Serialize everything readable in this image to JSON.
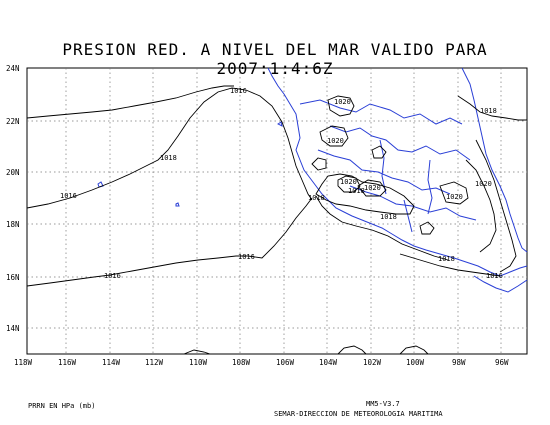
{
  "title": "PRESION RED. A NIVEL DEL MAR VALIDO PARA 2007:1:4:6Z",
  "units_note": "PRRN EN HPa (mb)",
  "model_version": "MM5-V3.7",
  "credit": "SEMAR-DIRECCION DE METEOROLOGIA MARITIMA",
  "colors": {
    "coastline": "#2a3fd6",
    "contour": "#000000",
    "grid": "#777777"
  },
  "latitude_ticks": [
    "24N",
    "22N",
    "20N",
    "18N",
    "16N",
    "14N"
  ],
  "longitude_ticks": [
    "118W",
    "116W",
    "114W",
    "112W",
    "110W",
    "108W",
    "106W",
    "104W",
    "102W",
    "100W",
    "98W",
    "96W"
  ],
  "contour_labels": [
    "1016",
    "1018",
    "1016",
    "1018",
    "1016",
    "1016",
    "1018",
    "1020",
    "1020",
    "1020",
    "1018",
    "1020",
    "1020",
    "1018",
    "1018",
    "1016",
    "1020",
    "1016"
  ]
}
